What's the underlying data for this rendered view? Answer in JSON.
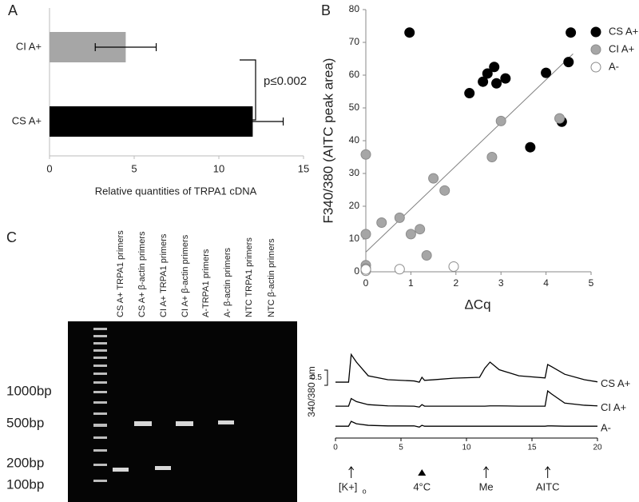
{
  "chart_data": [
    {
      "type": "hbar",
      "panel": "A",
      "categories": [
        "CI A+",
        "CS A+"
      ],
      "values": [
        4.5,
        12
      ],
      "errors": [
        1.8,
        1.8
      ],
      "colors": [
        "#a6a6a6",
        "#000000"
      ],
      "xlabel": "Relative quantities of TRPA1 cDNA",
      "xlim": [
        0,
        15
      ],
      "xticks": [
        0,
        5,
        10,
        15
      ],
      "annotation": "p≤0.002"
    },
    {
      "type": "scatter",
      "panel": "B",
      "xlabel": "ΔCq",
      "ylabel": "F340/380 (AITC peak area)",
      "xlim": [
        0,
        5
      ],
      "xticks": [
        0,
        1,
        2,
        3,
        4,
        5
      ],
      "ylim": [
        0,
        80
      ],
      "yticks": [
        0,
        10,
        20,
        30,
        40,
        50,
        60,
        70,
        80
      ],
      "legend": "upper right",
      "series": [
        {
          "name": "CS A+",
          "color": "#000000",
          "edgecolor": "#000000",
          "x": [
            0.97,
            2.3,
            2.6,
            2.7,
            2.85,
            2.9,
            3.1,
            3.65,
            4.0,
            4.35,
            4.5,
            4.55
          ],
          "values": [
            73,
            54.5,
            58,
            60.5,
            62.5,
            57.5,
            59,
            38,
            60.7,
            45.8,
            64,
            73
          ]
        },
        {
          "name": "CI A+",
          "color": "#a6a6a6",
          "edgecolor": "#8c8c8c",
          "x": [
            0,
            0,
            0,
            0,
            0.35,
            0.75,
            1.0,
            1.2,
            1.35,
            1.5,
            1.75,
            2.8,
            3.0,
            4.3
          ],
          "values": [
            35.8,
            11.5,
            2,
            1,
            15,
            16.5,
            11.5,
            13,
            5,
            28.5,
            24.8,
            35,
            46,
            46.8
          ]
        },
        {
          "name": "A-",
          "color": "#ffffff",
          "edgecolor": "#8c8c8c",
          "x": [
            0,
            0,
            0.75,
            1.95
          ],
          "values": [
            0.3,
            0.7,
            0.8,
            1.6
          ]
        }
      ],
      "fit_line": {
        "color": "#808080",
        "x": [
          0,
          4.6
        ],
        "y": [
          6,
          66.5
        ]
      }
    },
    {
      "type": "line",
      "ylabel": "340/380 nm",
      "scale_bar": 0.5,
      "xlim": [
        0,
        20
      ],
      "xticks": [
        0,
        5,
        10,
        15,
        20
      ],
      "ylim": [
        0,
        3
      ],
      "x": [
        0,
        1,
        1.2,
        1.6,
        2.5,
        4,
        6,
        6.4,
        6.6,
        6.8,
        7.5,
        9,
        11,
        11.4,
        11.8,
        12.5,
        14,
        16,
        16.2,
        16.5,
        17.5,
        19,
        20
      ],
      "series": [
        {
          "name": "CS A+",
          "color": "#000000",
          "values": [
            1.84,
            1.84,
            2.75,
            2.5,
            2.05,
            1.92,
            1.88,
            1.84,
            2.0,
            1.9,
            1.92,
            1.97,
            2.0,
            2.3,
            2.5,
            2.25,
            2.05,
            1.98,
            2.42,
            2.35,
            2.1,
            1.92,
            1.85
          ]
        },
        {
          "name": "CI A+",
          "color": "#000000",
          "values": [
            1.05,
            1.05,
            1.3,
            1.2,
            1.1,
            1.06,
            1.05,
            1.02,
            1.1,
            1.05,
            1.05,
            1.05,
            1.05,
            1.05,
            1.06,
            1.06,
            1.05,
            1.05,
            1.55,
            1.45,
            1.15,
            1.08,
            1.06
          ]
        },
        {
          "name": "A-",
          "color": "#000000",
          "values": [
            0.39,
            0.39,
            0.55,
            0.47,
            0.42,
            0.4,
            0.4,
            0.36,
            0.42,
            0.39,
            0.39,
            0.39,
            0.39,
            0.39,
            0.39,
            0.39,
            0.39,
            0.39,
            0.4,
            0.4,
            0.39,
            0.39,
            0.39
          ]
        }
      ],
      "stimuli": [
        {
          "x": 1.2,
          "label": "[K+]",
          "subscript": "o",
          "marker": "arrow"
        },
        {
          "x": 6.6,
          "label": "4°C",
          "marker": "triangle"
        },
        {
          "x": 11.5,
          "label": "Me",
          "marker": "arrow"
        },
        {
          "x": 16.2,
          "label": "AITC",
          "marker": "arrow"
        }
      ]
    }
  ],
  "gel": {
    "panel": "C",
    "lanes": [
      "CS A+ TRPA1 primers",
      "CS A+ β-actin primers",
      "CI A+ TRPA1 primers",
      "CI A+ β-actin primers",
      "A-TRPA1 primers",
      "A- β-actin primers",
      "NTC TRPA1 primers",
      "NTC β-actin primers"
    ],
    "sizes": [
      "1000bp",
      "500bp",
      "200bp",
      "100bp"
    ]
  }
}
